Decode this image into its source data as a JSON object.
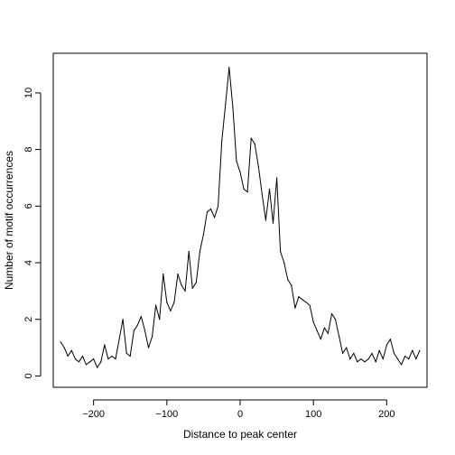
{
  "chart_data": {
    "type": "line",
    "title": "",
    "xlabel": "Distance to peak center",
    "ylabel": "Number of motif occurrences",
    "xlim": [
      -255,
      255
    ],
    "ylim": [
      -0.4,
      11.4
    ],
    "xticks": [
      -200,
      -100,
      0,
      100,
      200
    ],
    "yticks": [
      0,
      2,
      4,
      6,
      8,
      10
    ],
    "xtick_labels": [
      "−200",
      "−100",
      "0",
      "100",
      "200"
    ],
    "ytick_labels": [
      "0",
      "2",
      "4",
      "6",
      "8",
      "10"
    ],
    "grid": false,
    "legend": "none",
    "color": "#000000",
    "series": [
      {
        "x": [
          -245,
          -240,
          -235,
          -230,
          -225,
          -220,
          -215,
          -210,
          -205,
          -200,
          -195,
          -190,
          -185,
          -180,
          -175,
          -170,
          -165,
          -160,
          -155,
          -150,
          -145,
          -140,
          -135,
          -130,
          -125,
          -120,
          -115,
          -110,
          -105,
          -100,
          -95,
          -90,
          -85,
          -80,
          -75,
          -70,
          -65,
          -60,
          -55,
          -50,
          -45,
          -40,
          -35,
          -30,
          -25,
          -20,
          -15,
          -10,
          -5,
          0,
          5,
          10,
          15,
          20,
          25,
          30,
          35,
          40,
          45,
          50,
          55,
          60,
          65,
          70,
          75,
          80,
          85,
          90,
          95,
          100,
          105,
          110,
          115,
          120,
          125,
          130,
          135,
          140,
          145,
          150,
          155,
          160,
          165,
          170,
          175,
          180,
          185,
          190,
          195,
          200,
          205,
          210,
          215,
          220,
          225,
          230,
          235,
          240,
          245
        ],
        "y": [
          1.2,
          1.0,
          0.7,
          0.9,
          0.6,
          0.5,
          0.7,
          0.4,
          0.5,
          0.6,
          0.3,
          0.5,
          1.1,
          0.6,
          0.7,
          0.6,
          1.3,
          2.0,
          0.8,
          0.7,
          1.6,
          1.8,
          2.1,
          1.6,
          1.0,
          1.4,
          2.5,
          2.0,
          3.6,
          2.6,
          2.3,
          2.6,
          3.6,
          3.2,
          3.0,
          4.4,
          3.1,
          3.3,
          4.4,
          5.0,
          5.8,
          5.9,
          5.6,
          6.0,
          8.3,
          9.6,
          10.9,
          9.5,
          7.6,
          7.2,
          6.6,
          6.5,
          8.4,
          8.2,
          7.4,
          6.4,
          5.5,
          6.6,
          5.4,
          7.0,
          4.4,
          4.0,
          3.4,
          3.2,
          2.4,
          2.8,
          2.7,
          2.6,
          2.5,
          1.9,
          1.6,
          1.3,
          1.7,
          1.5,
          2.2,
          2.0,
          1.4,
          0.8,
          1.0,
          0.6,
          0.8,
          0.5,
          0.6,
          0.5,
          0.6,
          0.8,
          0.5,
          0.9,
          0.6,
          1.1,
          1.3,
          0.8,
          0.6,
          0.4,
          0.7,
          0.6,
          0.9,
          0.6,
          0.9
        ]
      }
    ]
  }
}
